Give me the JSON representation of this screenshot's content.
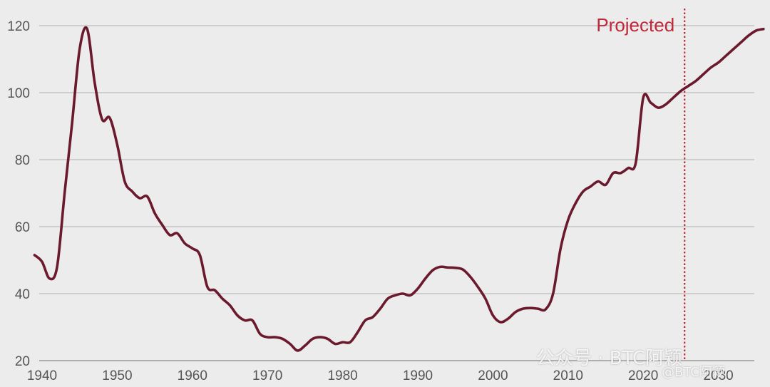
{
  "chart_data": {
    "type": "line",
    "title": "",
    "xlabel": "",
    "ylabel": "",
    "xlim": [
      1939,
      2036
    ],
    "ylim": [
      20,
      125
    ],
    "x_ticks": [
      1940,
      1950,
      1960,
      1970,
      1980,
      1990,
      2000,
      2010,
      2020,
      2030
    ],
    "x_tick_labels": [
      "1940",
      "1950",
      "1960",
      "1970",
      "1980",
      "1990",
      "2000",
      "2010",
      "2020",
      "2030"
    ],
    "y_ticks": [
      20,
      40,
      60,
      80,
      100,
      120
    ],
    "y_tick_labels": [
      "20",
      "40",
      "60",
      "80",
      "100",
      "120"
    ],
    "grid": "horizontal",
    "series": [
      {
        "color": "#6b1a2e",
        "x": [
          1939,
          1940,
          1941,
          1942,
          1943,
          1944,
          1945,
          1946,
          1947,
          1948,
          1949,
          1950,
          1951,
          1952,
          1953,
          1954,
          1955,
          1956,
          1957,
          1958,
          1959,
          1960,
          1961,
          1962,
          1963,
          1964,
          1965,
          1966,
          1967,
          1968,
          1969,
          1970,
          1971,
          1972,
          1973,
          1974,
          1975,
          1976,
          1977,
          1978,
          1979,
          1980,
          1981,
          1982,
          1983,
          1984,
          1985,
          1986,
          1987,
          1988,
          1989,
          1990,
          1991,
          1992,
          1993,
          1994,
          1995,
          1996,
          1997,
          1998,
          1999,
          2000,
          2001,
          2002,
          2003,
          2004,
          2005,
          2006,
          2007,
          2008,
          2009,
          2010,
          2011,
          2012,
          2013,
          2014,
          2015,
          2016,
          2017,
          2018,
          2019,
          2020,
          2021,
          2022,
          2023,
          2024,
          2025,
          2026,
          2027,
          2028,
          2029,
          2030,
          2031,
          2032,
          2033,
          2034,
          2035,
          2036
        ],
        "values": [
          51.5,
          49.5,
          44.5,
          48,
          70,
          91,
          113,
          119,
          103,
          92,
          92.5,
          84.5,
          73.5,
          70.5,
          68.5,
          69,
          64,
          60.5,
          57.5,
          58,
          55,
          53.5,
          51.5,
          42,
          41,
          38.5,
          36.5,
          33.5,
          32,
          32,
          28,
          27,
          27,
          26.5,
          25,
          23,
          24.5,
          26.5,
          27,
          26.5,
          25,
          25.5,
          25.5,
          28.5,
          32,
          33,
          35.5,
          38.5,
          39.5,
          40,
          39.5,
          41.5,
          44.5,
          47,
          48,
          47.8,
          47.7,
          47.2,
          45,
          42,
          38.5,
          33.5,
          31.5,
          32.5,
          34.5,
          35.5,
          35.7,
          35.5,
          35.3,
          40,
          53.5,
          62,
          67,
          70.5,
          72,
          73.5,
          72.5,
          76,
          76,
          77.5,
          79,
          98.5,
          97,
          95.5,
          96.5,
          98.5,
          100.5,
          102,
          103.5,
          105.5,
          107.5,
          109,
          111,
          113,
          115,
          117,
          118.5,
          119
        ]
      }
    ],
    "annotations": [
      {
        "text": "Projected",
        "x": 2025.5,
        "style": "vertical dotted line",
        "color": "#c0283a"
      }
    ]
  },
  "watermark": {
    "line1": "公众号 · BTC阿颖",
    "line2": "@BTC阿颖"
  }
}
